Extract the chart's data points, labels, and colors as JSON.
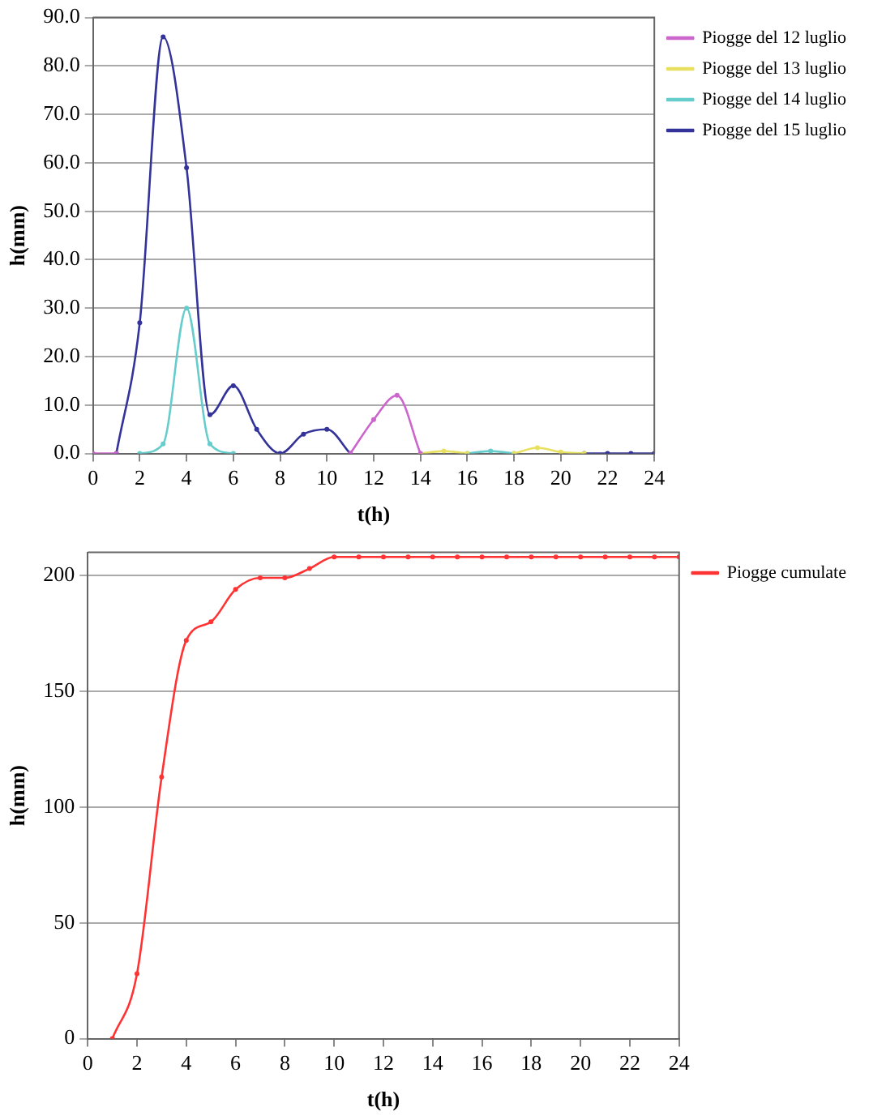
{
  "chart_data": [
    {
      "type": "line",
      "xlabel": "t(h)",
      "ylabel": "h(mm)",
      "x": [
        0,
        1,
        2,
        3,
        4,
        5,
        6,
        7,
        8,
        9,
        10,
        11,
        12,
        13,
        14,
        15,
        16,
        17,
        18,
        19,
        20,
        21,
        22,
        23,
        24
      ],
      "series": [
        {
          "name": "Piogge del 12 luglio",
          "color": "#cc66cc",
          "values": [
            0,
            0,
            null,
            null,
            null,
            null,
            null,
            null,
            null,
            null,
            null,
            0,
            7,
            12,
            0,
            null,
            null,
            null,
            null,
            null,
            null,
            null,
            null,
            null,
            null
          ]
        },
        {
          "name": "Piogge del 13 luglio",
          "color": "#e8e060",
          "values": [
            null,
            null,
            null,
            null,
            null,
            null,
            null,
            null,
            null,
            null,
            null,
            null,
            null,
            null,
            0,
            0.5,
            0,
            null,
            0,
            1.2,
            0.3,
            0,
            null,
            null,
            null
          ]
        },
        {
          "name": "Piogge del 14 luglio",
          "color": "#66cccc",
          "values": [
            null,
            null,
            0,
            2,
            30,
            2,
            0,
            null,
            null,
            null,
            null,
            null,
            null,
            null,
            null,
            null,
            0,
            0.5,
            0,
            null,
            null,
            null,
            null,
            null,
            null
          ]
        },
        {
          "name": "Piogge del 15 luglio",
          "color": "#333399",
          "values": [
            null,
            0,
            27,
            86,
            59,
            8,
            14,
            5,
            0,
            4,
            5,
            0,
            null,
            null,
            null,
            null,
            null,
            null,
            null,
            null,
            null,
            0,
            0,
            0,
            0
          ]
        }
      ],
      "xlim": [
        0,
        24
      ],
      "xticks": [
        0,
        2,
        4,
        6,
        8,
        10,
        12,
        14,
        16,
        18,
        20,
        22,
        24
      ],
      "ylim": [
        0,
        90
      ],
      "yticks": [
        {
          "value": 0,
          "label": "0.0"
        },
        {
          "value": 10,
          "label": "10.0"
        },
        {
          "value": 20,
          "label": "20.0"
        },
        {
          "value": 30,
          "label": "30.0"
        },
        {
          "value": 40,
          "label": "40.0"
        },
        {
          "value": 50,
          "label": "50.0"
        },
        {
          "value": 60,
          "label": "60.0"
        },
        {
          "value": 70,
          "label": "70.0"
        },
        {
          "value": 80,
          "label": "80.0"
        },
        {
          "value": 90,
          "label": "90.0"
        }
      ],
      "grid": "y",
      "legend": "top right",
      "marker": "circle",
      "line_style": "solid"
    },
    {
      "type": "line",
      "xlabel": "t(h)",
      "ylabel": "h(mm)",
      "x": [
        1,
        2,
        3,
        4,
        5,
        6,
        7,
        8,
        9,
        10,
        11,
        12,
        13,
        14,
        15,
        16,
        17,
        18,
        19,
        20,
        21,
        22,
        23,
        24
      ],
      "series": [
        {
          "name": "Piogge cumulate",
          "color": "#ff3333",
          "values": [
            0,
            28,
            113,
            172,
            180,
            194,
            199,
            199,
            203,
            208,
            208,
            208,
            208,
            208,
            208,
            208,
            208,
            208,
            208,
            208,
            208,
            208,
            208,
            208
          ]
        }
      ],
      "xlim": [
        0,
        24
      ],
      "xticks": [
        0,
        2,
        4,
        6,
        8,
        10,
        12,
        14,
        16,
        18,
        20,
        22,
        24
      ],
      "ylim": [
        0,
        210
      ],
      "yticks": [
        0,
        50,
        100,
        150,
        200
      ],
      "grid": "y",
      "legend": "top right",
      "marker": "circle",
      "line_style": "solid"
    }
  ]
}
